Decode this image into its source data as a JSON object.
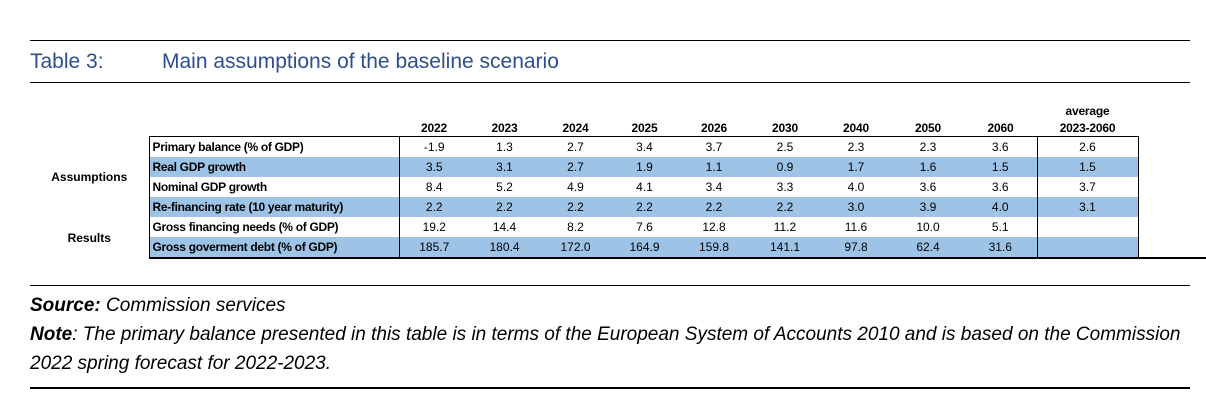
{
  "title": {
    "label": "Table 3:",
    "text": "Main assumptions of the baseline scenario"
  },
  "table": {
    "columns": [
      "2022",
      "2023",
      "2024",
      "2025",
      "2026",
      "2030",
      "2040",
      "2050",
      "2060"
    ],
    "avg_header_line1": "average",
    "avg_header_line2": "2023-2060",
    "groups": {
      "assumptions": "Assumptions",
      "results": "Results"
    },
    "rows": [
      {
        "label": "Primary balance (% of GDP)",
        "values": [
          "-1.9",
          "1.3",
          "2.7",
          "3.4",
          "3.7",
          "2.5",
          "2.3",
          "2.3",
          "3.6"
        ],
        "avg": "2.6"
      },
      {
        "label": "Real GDP growth",
        "values": [
          "3.5",
          "3.1",
          "2.7",
          "1.9",
          "1.1",
          "0.9",
          "1.7",
          "1.6",
          "1.5"
        ],
        "avg": "1.5"
      },
      {
        "label": "Nominal GDP growth",
        "values": [
          "8.4",
          "5.2",
          "4.9",
          "4.1",
          "3.4",
          "3.3",
          "4.0",
          "3.6",
          "3.6"
        ],
        "avg": "3.7"
      },
      {
        "label": "Re-financing rate (10 year maturity)",
        "values": [
          "2.2",
          "2.2",
          "2.2",
          "2.2",
          "2.2",
          "2.2",
          "3.0",
          "3.9",
          "4.0"
        ],
        "avg": "3.1"
      },
      {
        "label": "Gross financing needs (% of GDP)",
        "values": [
          "19.2",
          "14.4",
          "8.2",
          "7.6",
          "12.8",
          "11.2",
          "11.6",
          "10.0",
          "5.1"
        ],
        "avg": ""
      },
      {
        "label": "Gross goverment debt (% of GDP)",
        "values": [
          "185.7",
          "180.4",
          "172.0",
          "164.9",
          "159.8",
          "141.1",
          "97.8",
          "62.4",
          "31.6"
        ],
        "avg": ""
      }
    ]
  },
  "notes": {
    "source_label": "Source:",
    "source_text": " Commission services",
    "note_label": "Note",
    "note_text": ": The primary balance presented in this table is in terms of the European System of Accounts 2010 and is based on the Commission 2022 spring forecast for 2022-2023."
  }
}
